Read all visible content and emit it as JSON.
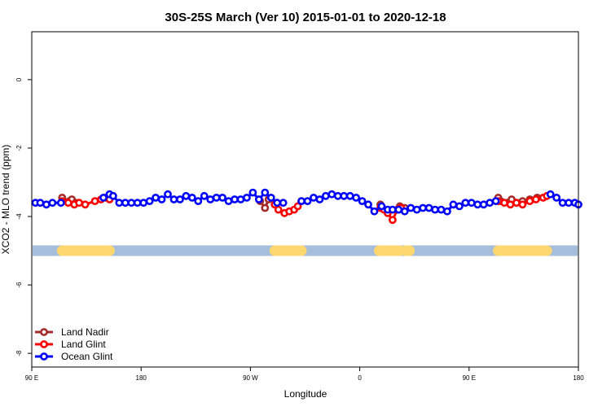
{
  "chart_data": {
    "type": "scatter",
    "title": "30S-25S March (Ver 10)   2015-01-01 to 2020-12-18",
    "xlabel": "Longitude",
    "ylabel": "XCO2 - MLO trend (ppm)",
    "xlim": [
      90,
      540
    ],
    "ylim": [
      -8.4,
      1.4
    ],
    "xticks": [
      {
        "value": 90,
        "label": "90 E"
      },
      {
        "value": 180,
        "label": "180"
      },
      {
        "value": 270,
        "label": "90 W"
      },
      {
        "value": 360,
        "label": "0"
      },
      {
        "value": 450,
        "label": "90 E"
      },
      {
        "value": 540,
        "label": "180"
      }
    ],
    "yticks": [
      {
        "value": 0,
        "label": "0"
      },
      {
        "value": -2,
        "label": "-2"
      },
      {
        "value": -4,
        "label": "-4"
      },
      {
        "value": -6,
        "label": "-6"
      },
      {
        "value": -8,
        "label": "-8"
      }
    ],
    "grid": false,
    "legend_position": "bottom-left",
    "land_band": {
      "y": -5.0,
      "ocean_color": "#a6bddb",
      "land_color": "#fdd770",
      "land_ranges": [
        [
          115,
          154
        ],
        [
          290,
          312
        ],
        [
          376,
          393
        ],
        [
          398,
          401
        ],
        [
          474,
          514
        ]
      ]
    },
    "series": [
      {
        "name": "Land Nadir",
        "color": "#a52a2a",
        "x": [
          115,
          121,
          123,
          126,
          278,
          282,
          285,
          377,
          393,
          397,
          474,
          476,
          485,
          494,
          500,
          506
        ],
        "y": [
          -3.45,
          -3.55,
          -3.5,
          -3.6,
          -3.55,
          -3.75,
          -3.5,
          -3.65,
          -3.7,
          -3.75,
          -3.45,
          -3.55,
          -3.5,
          -3.55,
          -3.5,
          -3.45
        ]
      },
      {
        "name": "Land Glint",
        "color": "#ff0000",
        "x": [
          115,
          120,
          125,
          129,
          134,
          142,
          147,
          151,
          154,
          290,
          293,
          298,
          302,
          306,
          309,
          312,
          377,
          380,
          383,
          387,
          391,
          394,
          474,
          479,
          484,
          489,
          494,
          500,
          505,
          511,
          514
        ],
        "y": [
          -3.55,
          -3.6,
          -3.65,
          -3.6,
          -3.65,
          -3.55,
          -3.5,
          -3.45,
          -3.5,
          -3.65,
          -3.8,
          -3.9,
          -3.85,
          -3.8,
          -3.7,
          -3.55,
          -3.75,
          -3.8,
          -3.9,
          -4.1,
          -3.8,
          -3.75,
          -3.55,
          -3.6,
          -3.65,
          -3.6,
          -3.65,
          -3.55,
          -3.5,
          -3.45,
          -3.4
        ]
      },
      {
        "name": "Ocean Glint",
        "color": "#0000ff",
        "x": [
          93,
          97,
          102,
          107,
          114,
          149,
          154,
          157,
          162,
          167,
          172,
          177,
          182,
          187,
          192,
          197,
          202,
          207,
          212,
          217,
          222,
          227,
          232,
          237,
          242,
          247,
          252,
          257,
          262,
          267,
          272,
          277,
          282,
          287,
          292,
          297,
          312,
          317,
          322,
          327,
          332,
          337,
          342,
          347,
          352,
          357,
          362,
          367,
          372,
          378,
          383,
          387,
          392,
          397,
          402,
          407,
          412,
          417,
          422,
          427,
          432,
          437,
          442,
          447,
          452,
          457,
          462,
          467,
          472,
          517,
          522,
          527,
          532,
          537,
          540
        ],
        "y": [
          -3.6,
          -3.6,
          -3.65,
          -3.6,
          -3.6,
          -3.45,
          -3.35,
          -3.4,
          -3.6,
          -3.6,
          -3.6,
          -3.6,
          -3.6,
          -3.55,
          -3.45,
          -3.5,
          -3.35,
          -3.5,
          -3.5,
          -3.4,
          -3.45,
          -3.55,
          -3.4,
          -3.5,
          -3.45,
          -3.45,
          -3.55,
          -3.5,
          -3.5,
          -3.45,
          -3.3,
          -3.5,
          -3.3,
          -3.45,
          -3.6,
          -3.6,
          -3.55,
          -3.55,
          -3.45,
          -3.5,
          -3.4,
          -3.35,
          -3.4,
          -3.4,
          -3.4,
          -3.45,
          -3.55,
          -3.65,
          -3.85,
          -3.7,
          -3.8,
          -3.8,
          -3.8,
          -3.85,
          -3.75,
          -3.8,
          -3.75,
          -3.75,
          -3.8,
          -3.8,
          -3.85,
          -3.65,
          -3.7,
          -3.6,
          -3.6,
          -3.65,
          -3.65,
          -3.6,
          -3.55,
          -3.35,
          -3.45,
          -3.6,
          -3.6,
          -3.6,
          -3.65
        ]
      }
    ]
  }
}
